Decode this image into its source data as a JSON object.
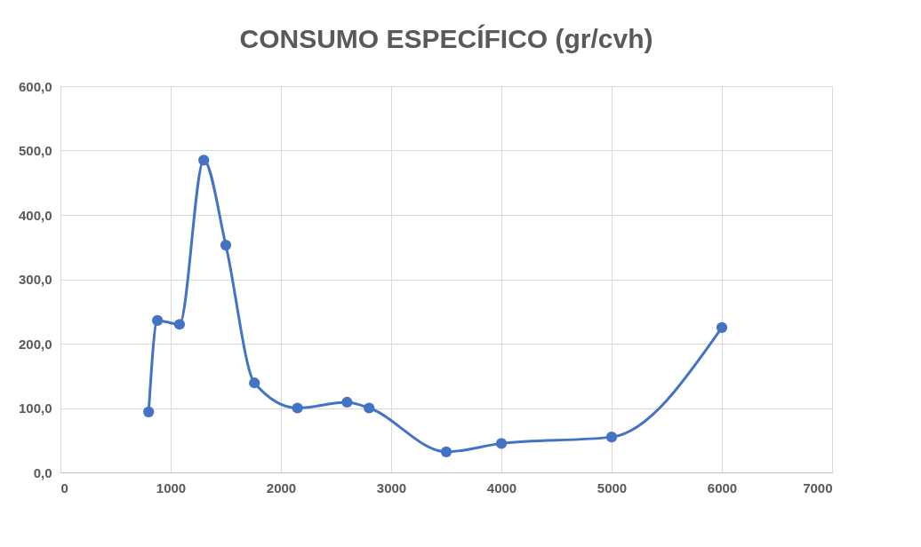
{
  "chart_data": {
    "type": "line",
    "title": "CONSUMO ESPECÍFICO (gr/cvh)",
    "x": [
      800,
      880,
      1080,
      1300,
      1500,
      1760,
      2150,
      2600,
      2800,
      3500,
      4000,
      5000,
      6000
    ],
    "series": [
      {
        "color": "#4472c4",
        "values": [
          94,
          236,
          230,
          485,
          353,
          139,
          100,
          109,
          100,
          32,
          45,
          55,
          225
        ]
      }
    ],
    "xlim": [
      0,
      7000
    ],
    "xticks": [
      0,
      1000,
      2000,
      3000,
      4000,
      5000,
      6000,
      7000
    ],
    "ylim": [
      0,
      600
    ],
    "yticks": [
      {
        "value": 0,
        "label": "0,0"
      },
      {
        "value": 100,
        "label": "100,0"
      },
      {
        "value": 200,
        "label": "200,0"
      },
      {
        "value": 300,
        "label": "300,0"
      },
      {
        "value": 400,
        "label": "400,0"
      },
      {
        "value": 500,
        "label": "500,0"
      },
      {
        "value": 600,
        "label": "600,0"
      }
    ],
    "grid": true,
    "marker": "circle",
    "line_style": "solid"
  }
}
